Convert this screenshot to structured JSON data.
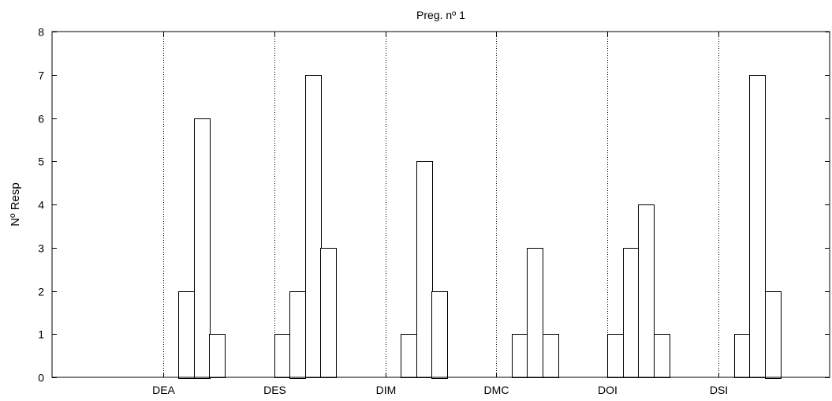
{
  "chart_data": {
    "type": "bar",
    "title": "Preg. nº 1",
    "xlabel": "",
    "ylabel": "Nº Resp",
    "ylim": [
      0,
      8
    ],
    "yticks": [
      0,
      1,
      2,
      3,
      4,
      5,
      6,
      7,
      8
    ],
    "categories": [
      "DEA",
      "DES",
      "DIM",
      "DMC",
      "DOI",
      "DSI"
    ],
    "bars_per_group": 4,
    "values": [
      [
        0,
        2,
        6,
        1
      ],
      [
        1,
        2,
        7,
        3
      ],
      [
        0,
        1,
        5,
        2
      ],
      [
        0,
        1,
        3,
        1
      ],
      [
        1,
        3,
        4,
        1
      ],
      [
        0,
        1,
        7,
        2
      ]
    ],
    "reference_lines_at_categories": true,
    "grid": false,
    "bar_fill": "#ffffff",
    "bar_stroke": "#000000"
  }
}
